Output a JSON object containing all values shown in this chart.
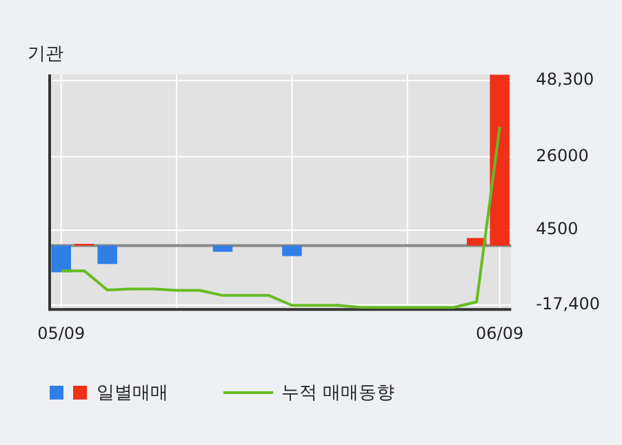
{
  "chart_data": {
    "type": "bar",
    "title": "기관",
    "categories": [
      "05/09",
      null,
      null,
      null,
      null,
      null,
      null,
      null,
      null,
      null,
      null,
      null,
      null,
      null,
      null,
      null,
      null,
      null,
      null,
      "06/09"
    ],
    "series": [
      {
        "name": "일별매매",
        "colors": [
          "#2f7fe6",
          "#f03018",
          "#2f7fe6",
          null,
          null,
          null,
          null,
          "#2f7fe6",
          null,
          null,
          "#2f7fe6",
          null,
          null,
          null,
          null,
          null,
          null,
          null,
          "#f03018",
          "#f03018"
        ],
        "values": [
          -7800,
          500,
          -5400,
          null,
          null,
          null,
          null,
          -1800,
          null,
          null,
          -3100,
          null,
          null,
          null,
          null,
          null,
          null,
          null,
          2200,
          50000
        ]
      },
      {
        "type": "line",
        "name": "누적 매매동향",
        "color": "#66bb22",
        "values": [
          -7400,
          -7400,
          -13000,
          -12700,
          -12700,
          -13100,
          -13100,
          -14600,
          -14600,
          -14600,
          -17500,
          -17500,
          -17500,
          -18100,
          -18100,
          -18100,
          -18100,
          -18100,
          -16500,
          34700
        ]
      }
    ],
    "ylim": [
      -18700,
      50100
    ],
    "yticks": [
      {
        "value": 48300,
        "label": "48,300"
      },
      26000,
      4500,
      {
        "value": -17400,
        "label": "-17,400"
      }
    ],
    "ref_lines": [
      {
        "axis": "y",
        "value": 0,
        "color": "#888888"
      }
    ],
    "grid": true,
    "legend": "bottom"
  }
}
